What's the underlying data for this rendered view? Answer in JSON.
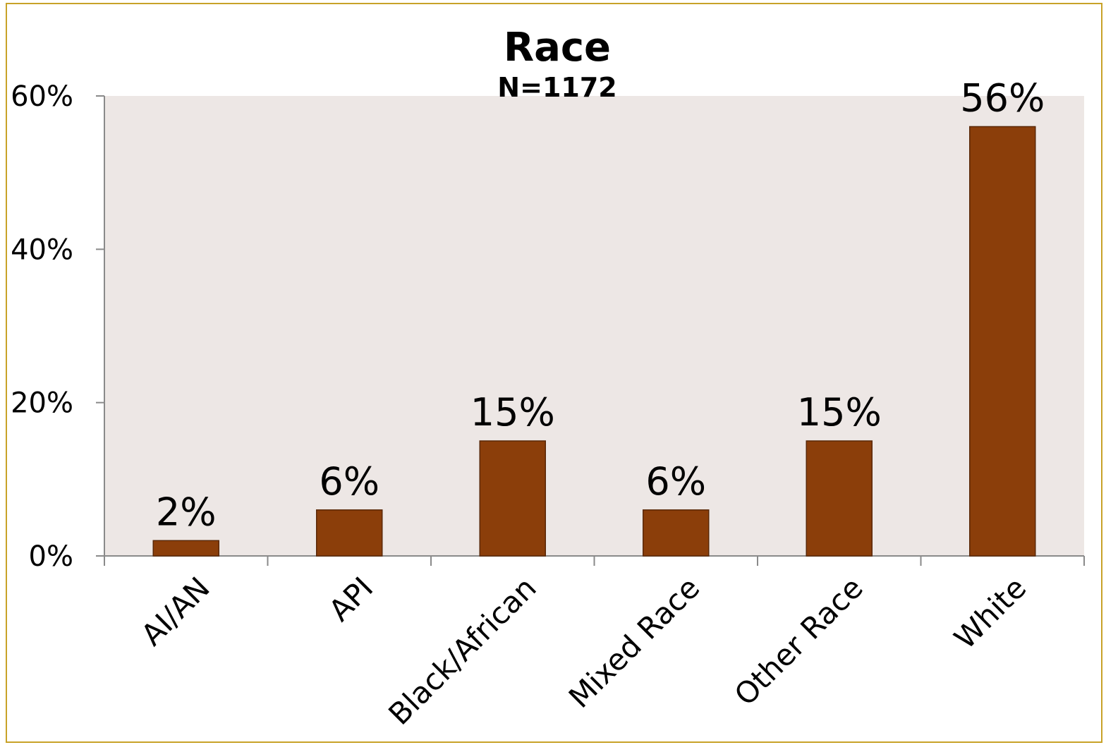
{
  "chart_data": {
    "type": "bar",
    "title": "Race",
    "subtitle": "N=1172",
    "categories": [
      "AI/AN",
      "API",
      "Black/African",
      "Mixed Race",
      "Other Race",
      "White"
    ],
    "values": [
      2,
      6,
      15,
      6,
      15,
      56
    ],
    "data_labels": [
      "2%",
      "6%",
      "15%",
      "6%",
      "15%",
      "56%"
    ],
    "ylim": [
      0,
      60
    ],
    "y_ticks": [
      0,
      20,
      40,
      60
    ],
    "y_tick_labels": [
      "0%",
      "20%",
      "40%",
      "60%"
    ],
    "xlabel": "",
    "ylabel": "",
    "grid": false,
    "legend": "none",
    "colors": {
      "bar": "#8b3e0a",
      "bar_stroke": "#5a2808",
      "plot_background": "#ede7e5",
      "frame_border": "#c8a228",
      "axis": "#8a8a8a"
    }
  }
}
